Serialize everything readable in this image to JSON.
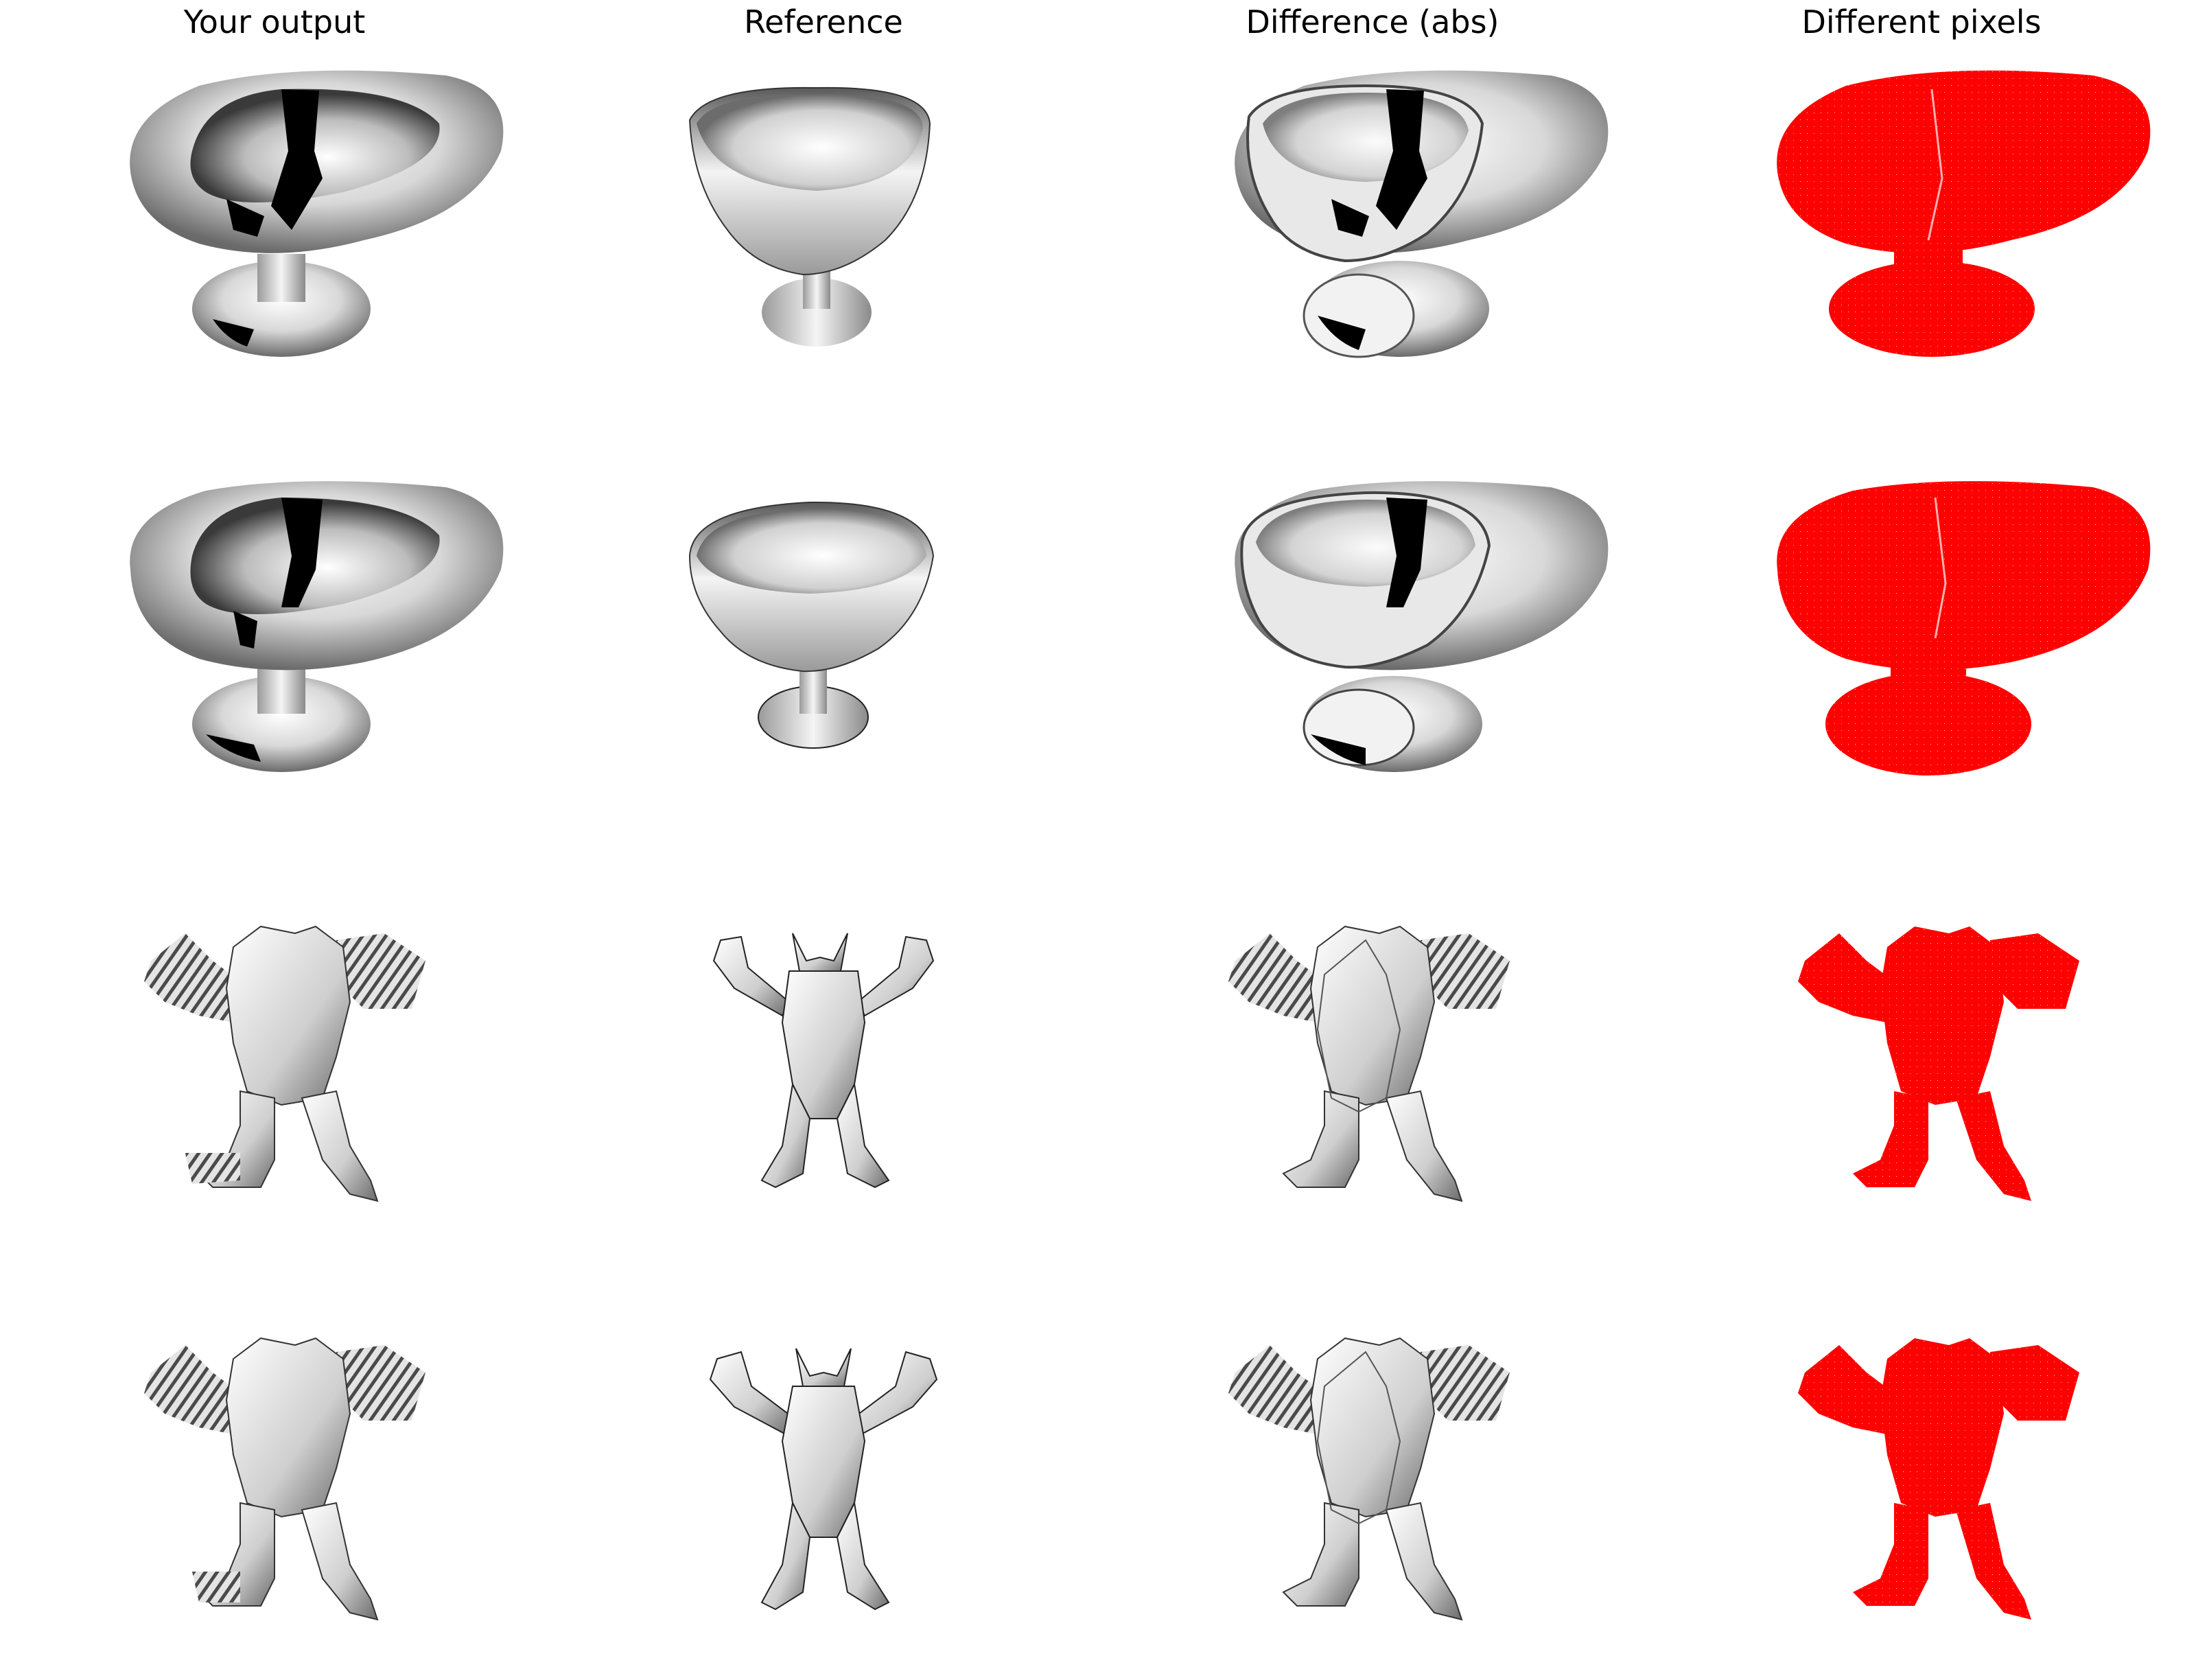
{
  "column_titles": [
    "Your output",
    "Reference",
    "Difference (abs)",
    "Different pixels"
  ],
  "rows": [
    {
      "subject": "goblet",
      "view": "view-1"
    },
    {
      "subject": "goblet",
      "view": "view-2"
    },
    {
      "subject": "armadillo",
      "view": "view-1"
    },
    {
      "subject": "armadillo",
      "view": "view-2"
    }
  ],
  "colors": {
    "background": "#ffffff",
    "diff_mask": "#ff0000",
    "title_text": "#000000"
  }
}
